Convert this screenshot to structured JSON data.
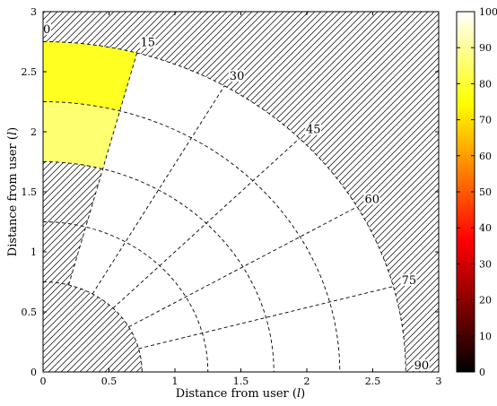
{
  "chart_data": {
    "type": "heatmap",
    "title": "",
    "xlabel_text": "Distance from user (",
    "xlabel_unit": "l",
    "ylabel_text": "Distance from user (",
    "ylabel_unit": "l",
    "xlim": [
      0,
      3
    ],
    "ylim": [
      0,
      3
    ],
    "xticks": [
      0,
      0.5,
      1,
      1.5,
      2,
      2.5,
      3
    ],
    "xtick_labels": [
      "0",
      "0.5",
      "1",
      "1.5",
      "2",
      "2.5",
      "3"
    ],
    "yticks": [
      0,
      0.5,
      1,
      1.5,
      2,
      2.5,
      3
    ],
    "ytick_labels": [
      "0",
      "0.5",
      "1",
      "1.5",
      "2",
      "2.5",
      "3"
    ],
    "radial_bins": [
      0.75,
      1.25,
      1.75,
      2.25,
      2.75
    ],
    "angular_bins_deg": [
      0,
      15,
      30,
      45,
      60,
      75,
      90
    ],
    "angle_labels": [
      "0",
      "15",
      "30",
      "45",
      "60",
      "75",
      "90"
    ],
    "cells": [
      {
        "r_inner": 2.25,
        "r_outer": 2.75,
        "angle_from": 0,
        "angle_to": 15,
        "value": 78
      },
      {
        "r_inner": 1.75,
        "r_outer": 2.25,
        "angle_from": 0,
        "angle_to": 15,
        "value": 86
      }
    ],
    "unfilled_cells_value": 100,
    "hatched_regions": "r < 0.75 and r > 2.75; 0–15° sector for r < 1.75",
    "colorbar": {
      "colormap": "hot",
      "range": [
        0,
        100
      ],
      "ticks": [
        0,
        10,
        20,
        30,
        40,
        50,
        60,
        70,
        80,
        90,
        100
      ],
      "tick_labels": [
        "0",
        "10",
        "20",
        "30",
        "40",
        "50",
        "60",
        "70",
        "80",
        "90",
        "100"
      ]
    },
    "grid": "dashed polar grid"
  }
}
